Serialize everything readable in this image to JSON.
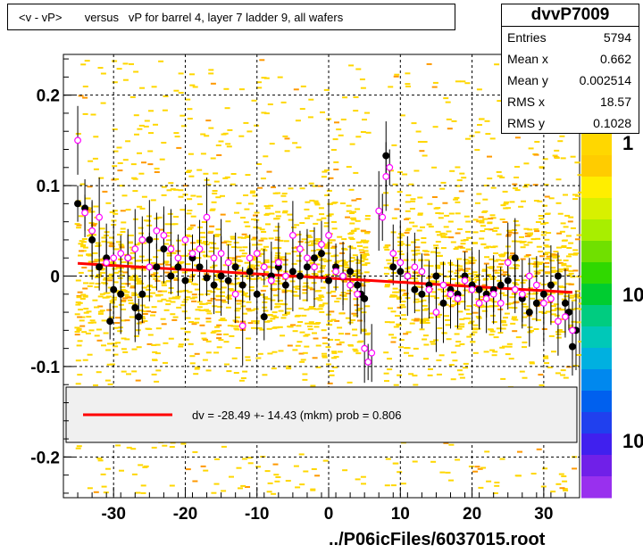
{
  "title": "<v - vP>       versus   vP for barrel 4, layer 7 ladder 9, all wafers",
  "stats": {
    "name": "dvvP7009",
    "rows": [
      {
        "key": "Entries",
        "value": "5794"
      },
      {
        "key": "Mean x",
        "value": "0.662"
      },
      {
        "key": "Mean y",
        "value": "0.002514"
      },
      {
        "key": "RMS x",
        "value": "18.57"
      },
      {
        "key": "RMS y",
        "value": "0.1028"
      }
    ]
  },
  "legend": {
    "fit_text": "dv =  -28.49 +- 14.43 (mkm) prob = 0.806"
  },
  "footer": "../P06icFiles/6037015.root",
  "palette_labels": [
    "1",
    "10",
    "10"
  ],
  "colors": {
    "fit_line": "#ff0000",
    "black_points": "#000000",
    "open_points": "#ff00ff",
    "grid": "#000000"
  },
  "chart_data": {
    "type": "scatter",
    "title": "<v - vP>       versus   vP for barrel 4, layer 7 ladder 9, all wafers",
    "xlim": [
      -37,
      35
    ],
    "ylim": [
      -0.245,
      0.245
    ],
    "x_ticks": [
      -30,
      -20,
      -10,
      0,
      10,
      20,
      30
    ],
    "y_ticks": [
      -0.2,
      -0.1,
      0,
      0.1,
      0.2
    ],
    "x_tick_labels": [
      "-30",
      "-20",
      "-10",
      "0",
      "10",
      "20",
      "30"
    ],
    "y_tick_labels": [
      "-0.2",
      "-0.1",
      "0",
      "0.1",
      "0.2"
    ],
    "grid": true,
    "fit_line": {
      "x": [
        -35,
        34
      ],
      "y": [
        0.014,
        -0.018
      ]
    },
    "series": [
      {
        "marker": "filled-circle",
        "points": [
          [
            -35,
            0.08
          ],
          [
            -34,
            0.075
          ],
          [
            -33,
            0.04
          ],
          [
            -32,
            0.01
          ],
          [
            -31,
            0.02
          ],
          [
            -30.5,
            -0.05
          ],
          [
            -30,
            -0.015
          ],
          [
            -29,
            -0.02
          ],
          [
            -28,
            0.02
          ],
          [
            -27,
            -0.035
          ],
          [
            -26.5,
            -0.045
          ],
          [
            -26,
            -0.02
          ],
          [
            -25,
            0.04
          ],
          [
            -24,
            0.01
          ],
          [
            -23,
            0.03
          ],
          [
            -22,
            0.0
          ],
          [
            -21,
            0.01
          ],
          [
            -20,
            -0.005
          ],
          [
            -19,
            0.02
          ],
          [
            -18,
            0.01
          ],
          [
            -17,
            -0.002
          ],
          [
            -16,
            -0.01
          ],
          [
            -15,
            0.0
          ],
          [
            -14,
            -0.005
          ],
          [
            -13,
            0.01
          ],
          [
            -12,
            -0.01
          ],
          [
            -11,
            0.005
          ],
          [
            -10,
            -0.02
          ],
          [
            -9,
            -0.045
          ],
          [
            -8,
            0.0
          ],
          [
            -7,
            0.01
          ],
          [
            -6,
            -0.01
          ],
          [
            -5,
            0.005
          ],
          [
            -4,
            0.0
          ],
          [
            -3,
            0.01
          ],
          [
            -2,
            0.02
          ],
          [
            -1,
            0.025
          ],
          [
            0,
            -0.005
          ],
          [
            1,
            0.01
          ],
          [
            2,
            0.0
          ],
          [
            3,
            0.005
          ],
          [
            4,
            -0.01
          ],
          [
            4.5,
            -0.02
          ],
          [
            5,
            -0.025
          ],
          [
            8,
            0.133
          ],
          [
            9,
            0.01
          ],
          [
            10,
            0.005
          ],
          [
            11,
            0.0
          ],
          [
            12,
            -0.015
          ],
          [
            13,
            -0.02
          ],
          [
            14,
            -0.01
          ],
          [
            15,
            0.0
          ],
          [
            16,
            -0.03
          ],
          [
            17,
            -0.015
          ],
          [
            18,
            -0.02
          ],
          [
            19,
            0.0
          ],
          [
            20,
            -0.01
          ],
          [
            21,
            -0.015
          ],
          [
            22,
            -0.02
          ],
          [
            23,
            -0.015
          ],
          [
            24,
            -0.01
          ],
          [
            25,
            -0.005
          ],
          [
            26,
            0.02
          ],
          [
            27,
            -0.025
          ],
          [
            28,
            -0.04
          ],
          [
            29,
            -0.03
          ],
          [
            30,
            -0.02
          ],
          [
            31,
            -0.01
          ],
          [
            32,
            0.0
          ],
          [
            33,
            -0.03
          ],
          [
            33.5,
            -0.04
          ],
          [
            34,
            -0.078
          ],
          [
            34.5,
            -0.06
          ]
        ]
      },
      {
        "marker": "open-circle",
        "points": [
          [
            -35,
            0.15
          ],
          [
            -34,
            0.07
          ],
          [
            -33,
            0.05
          ],
          [
            -32,
            0.065
          ],
          [
            -31,
            0.015
          ],
          [
            -30,
            0.02
          ],
          [
            -29,
            0.025
          ],
          [
            -28,
            0.02
          ],
          [
            -27,
            0.03
          ],
          [
            -26,
            0.04
          ],
          [
            -25,
            0.01
          ],
          [
            -24,
            0.05
          ],
          [
            -23,
            0.045
          ],
          [
            -22,
            0.03
          ],
          [
            -21,
            0.02
          ],
          [
            -20,
            0.04
          ],
          [
            -19,
            0.025
          ],
          [
            -18,
            0.03
          ],
          [
            -17,
            0.065
          ],
          [
            -16,
            0.02
          ],
          [
            -15,
            0.025
          ],
          [
            -14,
            0.015
          ],
          [
            -13,
            -0.02
          ],
          [
            -12,
            -0.055
          ],
          [
            -11,
            0.02
          ],
          [
            -10,
            0.025
          ],
          [
            -9,
            0.01
          ],
          [
            -8,
            -0.005
          ],
          [
            -7,
            0.015
          ],
          [
            -6,
            0.0
          ],
          [
            -5,
            0.045
          ],
          [
            -4,
            0.03
          ],
          [
            -3,
            0.02
          ],
          [
            -2,
            0.01
          ],
          [
            -1,
            0.035
          ],
          [
            0,
            0.045
          ],
          [
            1,
            0.005
          ],
          [
            2,
            0.0
          ],
          [
            3,
            -0.01
          ],
          [
            4,
            -0.02
          ],
          [
            5,
            -0.08
          ],
          [
            5.5,
            -0.095
          ],
          [
            6,
            -0.085
          ],
          [
            7,
            0.072
          ],
          [
            7.5,
            0.065
          ],
          [
            8,
            0.11
          ],
          [
            8.5,
            0.12
          ],
          [
            9,
            0.025
          ],
          [
            10,
            0.015
          ],
          [
            11,
            0.0
          ],
          [
            12,
            0.01
          ],
          [
            13,
            0.005
          ],
          [
            14,
            -0.015
          ],
          [
            15,
            -0.04
          ],
          [
            16,
            -0.01
          ],
          [
            17,
            -0.02
          ],
          [
            18,
            -0.025
          ],
          [
            19,
            -0.005
          ],
          [
            20,
            -0.015
          ],
          [
            21,
            -0.03
          ],
          [
            22,
            -0.025
          ],
          [
            23,
            -0.02
          ],
          [
            24,
            -0.03
          ],
          [
            25,
            0.015
          ],
          [
            26,
            -0.015
          ],
          [
            27,
            -0.02
          ],
          [
            28,
            0.0
          ],
          [
            29,
            -0.01
          ],
          [
            30,
            -0.03
          ],
          [
            31,
            -0.025
          ],
          [
            32,
            -0.05
          ],
          [
            33,
            -0.045
          ],
          [
            34,
            -0.06
          ]
        ]
      }
    ]
  }
}
